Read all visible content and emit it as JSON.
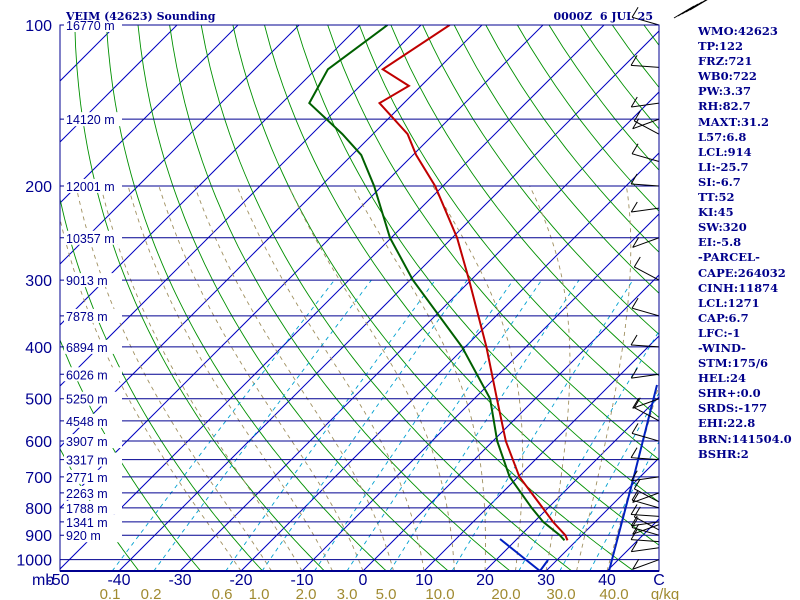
{
  "header": {
    "title": "VEIM (42623) Sounding",
    "datetime": "0000Z  6 JUL 25"
  },
  "colors": {
    "background": "#ffffff",
    "frame": "#ffffff",
    "isobar": "#000090",
    "isotherm": "#0000c0",
    "dry_adiabat": "#009000",
    "moist_adiabat": "#a09060",
    "mixing_ratio": "#00a0d0",
    "temperature": "#c00000",
    "dewpoint": "#006000",
    "wind_profile": "#0020c0",
    "text_blue": "#00008b",
    "mixing_label": "#a08a30"
  },
  "chart_data": {
    "type": "line",
    "title": "VEIM (42623) Sounding",
    "xlabel": "",
    "ylabel": "mb",
    "x_ticks": [
      "-50",
      "-40",
      "-30",
      "-20",
      "-10",
      "0",
      "10",
      "20",
      "30",
      "40",
      "C"
    ],
    "y_ticks": [
      "100",
      "200",
      "300",
      "400",
      "500",
      "600",
      "700",
      "800",
      "900",
      "1000"
    ],
    "height_labels": [
      "16770 m",
      "14120 m",
      "12001 m",
      "10357 m",
      "9013 m",
      "7878 m",
      "6894 m",
      "6026 m",
      "5250 m",
      "4548 m",
      "3907 m",
      "3317 m",
      "2771 m",
      "2263 m",
      "1788 m",
      "1341 m",
      "920 m"
    ],
    "height_levels_mb": [
      100,
      150,
      200,
      250,
      300,
      350,
      400,
      450,
      500,
      550,
      600,
      650,
      700,
      750,
      800,
      850,
      900
    ],
    "mixing_ratio_labels": [
      "0.1",
      "0.2",
      "0.6",
      "1.0",
      "2.0",
      "3.0",
      "5.0",
      "10.0",
      "20.0",
      "30.0",
      "40.0",
      "g/kg"
    ],
    "series": [
      {
        "name": "temperature",
        "pressure_mb": [
          920,
          900,
          850,
          800,
          700,
          600,
          500,
          400,
          300,
          250,
          200,
          175,
          160,
          140,
          130,
          121,
          100
        ],
        "temp_c": [
          28.5,
          27.3,
          23.1,
          19.1,
          10.2,
          2.1,
          -6.3,
          -16.5,
          -30.3,
          -39.2,
          -51.3,
          -59.5,
          -64.3,
          -74,
          -72,
          -79,
          -75.3
        ]
      },
      {
        "name": "dewpoint",
        "pressure_mb": [
          920,
          900,
          850,
          800,
          700,
          600,
          500,
          400,
          300,
          250,
          200,
          175,
          160,
          140,
          121,
          100
        ],
        "temp_c": [
          28,
          26.4,
          21.5,
          17.3,
          8.6,
          0.7,
          -7.4,
          -20.5,
          -39.5,
          -50.2,
          -61.3,
          -68.5,
          -75,
          -85.5,
          -88,
          -85.5
        ]
      }
    ],
    "wind_profile": {
      "height_m": [
        0,
        2500,
        5300
      ],
      "speed_kt": [
        29,
        38,
        47
      ]
    },
    "xlim": [
      -50,
      50
    ],
    "ylim": [
      1050,
      100
    ],
    "y_scale": "log",
    "grid": true
  },
  "indices": [
    "WMO:42623",
    "TP:122",
    "FRZ:721",
    "WB0:722",
    "PW:3.37",
    "RH:82.7",
    "MAXT:31.2",
    "L57:6.8",
    "LCL:914",
    "LI:-25.7",
    "SI:-6.7",
    "TT:52",
    "KI:45",
    "SW:320",
    "EI:-5.8",
    "-PARCEL-",
    "CAPE:264032",
    "CINH:11874",
    "LCL:1271",
    "CAP:6.7",
    "LFC:-1",
    "-WIND-",
    "STM:175/6",
    "HEL:24",
    "SHR+:0.0",
    "SRDS:-177",
    "EHI:22.8",
    "BRN:141504.0",
    "BSHR:2"
  ]
}
